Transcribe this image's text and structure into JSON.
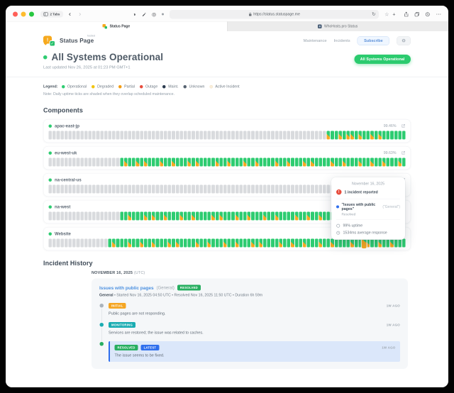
{
  "browser": {
    "tabs_count_label": "2 Tabs",
    "url": "https://status.statuspage.me",
    "tabs": [
      {
        "label": "Status Page",
        "active": true
      },
      {
        "label": "WhoHosts.pro Status",
        "active": false
      }
    ]
  },
  "header": {
    "brand": "Status Page",
    "brand_tag": "hosted",
    "nav": [
      "Maintenance",
      "Incidents"
    ],
    "subscribe_label": "Subscribe"
  },
  "hero": {
    "title": "All Systems Operational",
    "updated": "Last updated Nov 26, 2025 at 01:23 PM GMT+1",
    "status_pill": "All Systems Operational"
  },
  "legend": {
    "label": "Legend:",
    "items": [
      {
        "label": "Operational",
        "color": "#2ecc71"
      },
      {
        "label": "Degraded",
        "color": "#f1c40f"
      },
      {
        "label": "Partial",
        "color": "#f39c12"
      },
      {
        "label": "Outage",
        "color": "#e74c3c"
      },
      {
        "label": "Maint.",
        "color": "#2b3a4e"
      },
      {
        "label": "Unknown",
        "color": "#566270"
      },
      {
        "label": "Active Incident",
        "color": "#faeeda"
      }
    ],
    "note": "Note: Daily uptime ticks are shaded when they overlap scheduled maintenance."
  },
  "components": {
    "heading": "Components",
    "tick_colors": {
      "no_data": "#d9dbde",
      "operational": "#2ecc71",
      "maintenance_shade": "#f6a821"
    },
    "items": [
      {
        "name": "apac-east-jp",
        "uptime": "99.46%",
        "ticks": "u:70,m:1,g:2,m:1,g:1,m:2,g:1,m:1,g:2,m:1,g:1,m:1,g:6"
      },
      {
        "name": "eu-west-uk",
        "uptime": "99.63%",
        "ticks": "u:18,g:1,m:1,g:2,m:1,g:1,m:1,g:3,m:1,g:2,m:1,g:3,m:1,g:1,m:1,g:4,m:1,g:2,m:1,g:3,m:1,g:2,m:1,g:4,m:1,g:2,m:1,g:3,m:1,g:1,m:1,g:4,m:1,g:2,m:1,g:3,m:1,g:2,m:1,g:2,m:1,g:3,m:1,g:1"
      },
      {
        "name": "na-central-us",
        "uptime": "",
        "ticks": "u:87,m:1,g:2"
      },
      {
        "name": "na-west",
        "uptime": "",
        "ticks": "u:18,g:2,m:1,g:3,m:1,g:1,m:1,g:2,m:1,g:3,m:1,g:2,m:1,g:4,m:1,g:1,m:1,g:3,m:1,g:2,m:1,g:3,m:1,g:2,m:1,g:4,m:1,g:2,m:1,g:2,m:1,g:3,m:1,g:1,m:1,g:3,m:1,g:2,m:1,g:2,m:1,g:5"
      },
      {
        "name": "Website",
        "uptime": "",
        "ticks": "u:15,g:1,m:1,g:3,m:1,g:2,m:1,g:2,m:1,g:3,m:1,g:1,m:1,g:4,m:1,g:2,m:1,g:3,m:1,g:2,m:1,g:3,m:1,g:1,m:1,g:4,m:1,g:2,m:1,g:2,m:1,g:3,m:1,g:2,m:1,g:3,g:1,m:1,g:2,h:1,m:1,g:2,m:1,g:2,m:1,g:3"
      }
    ]
  },
  "tooltip": {
    "date": "November 16, 2025",
    "incident_count": "1 incident reported",
    "incident_title": "\"Issues with public pages\"",
    "incident_scope": "(\"General\")",
    "incident_state": "Resolved",
    "uptime": "99% uptime",
    "response": "1534ms average response"
  },
  "incident_history": {
    "heading": "Incident History",
    "date_label": "NOVEMBER 16, 2025",
    "date_suffix": "(UTC)",
    "incident": {
      "title": "Issues with public pages",
      "scope": "(General)",
      "status_badge": "RESOLVED",
      "status_badge_color": "#27ae60",
      "meta_bold": "General",
      "meta": " • Started Nov 16, 2025 04:50 UTC • Resolved Nov 16, 2025 11:50 UTC • Duration 6h 59m",
      "updates": [
        {
          "dot": "#aab3bc",
          "badges": [
            {
              "label": "INITIAL",
              "color": "#f5a623"
            }
          ],
          "time": "1W AGO",
          "text": "Public pages are not responding.",
          "latest": false
        },
        {
          "dot": "#1aacb2",
          "badges": [
            {
              "label": "MONITORING",
              "color": "#1aacb2"
            }
          ],
          "time": "1W AGO",
          "text": "Services are restored; the issue was related to caches.",
          "latest": false
        },
        {
          "dot": "#27ae60",
          "badges": [
            {
              "label": "RESOLVED",
              "color": "#27ae60"
            },
            {
              "label": "LATEST",
              "color": "#2f6fed"
            }
          ],
          "time": "1W AGO",
          "text": "The issue seems to be fixed.",
          "latest": true
        }
      ]
    }
  },
  "colors": {
    "operational_green": "#2ecc71",
    "maintenance_orange": "#f6a821",
    "link_blue": "#4a8fe0",
    "alert_red": "#e74c3c",
    "latest_blue": "#2f6fed",
    "monitoring_teal": "#1aacb2"
  }
}
